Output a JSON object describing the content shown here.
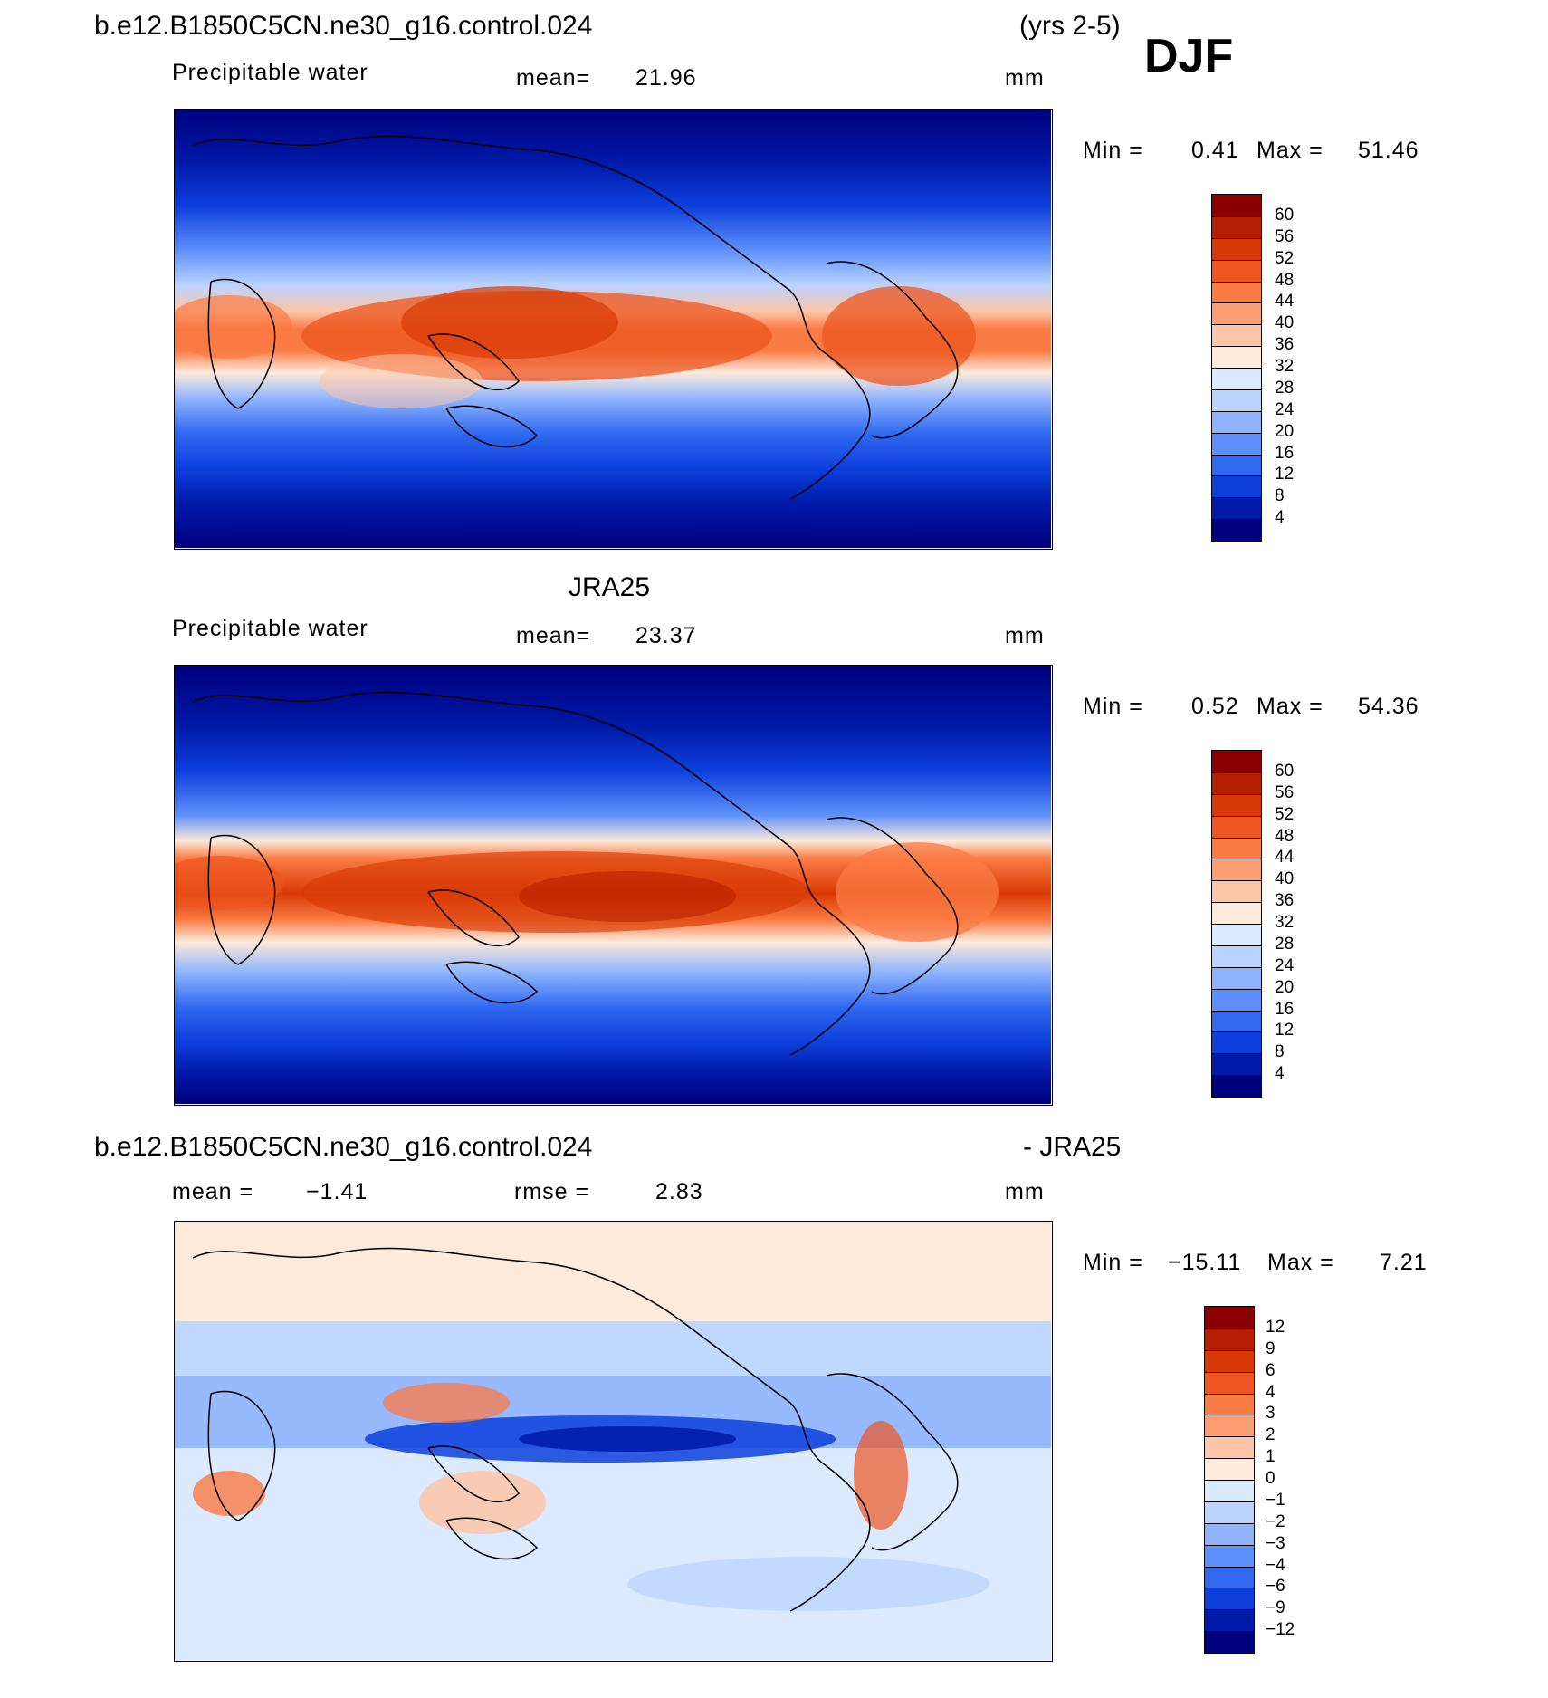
{
  "header": {
    "case_name": "b.e12.B1850C5CN.ne30_g16.control.024",
    "years": "(yrs 2-5)",
    "season": "DJF"
  },
  "panels": [
    {
      "id": "model",
      "title": "",
      "variable": "Precipitable water",
      "stat1_label": "mean=",
      "stat1_value": "21.96",
      "units": "mm",
      "min_label": "Min =",
      "min_value": "0.41",
      "max_label": "Max =",
      "max_value": "51.46"
    },
    {
      "id": "obs",
      "title": "JRA25",
      "variable": "Precipitable water",
      "stat1_label": "mean=",
      "stat1_value": "23.37",
      "units": "mm",
      "min_label": "Min =",
      "min_value": "0.52",
      "max_label": "Max =",
      "max_value": "54.36"
    },
    {
      "id": "diff",
      "title_left": "b.e12.B1850C5CN.ne30_g16.control.024",
      "title_right": "- JRA25",
      "stat1_label": "mean =",
      "stat1_value": "−1.41",
      "stat2_label": "rmse =",
      "stat2_value": "2.83",
      "units": "mm",
      "min_label": "Min =",
      "min_value": "−15.11",
      "max_label": "Max =",
      "max_value": "7.21"
    }
  ],
  "colorbars": {
    "abs": {
      "labels": [
        "60",
        "56",
        "52",
        "48",
        "44",
        "40",
        "36",
        "32",
        "28",
        "24",
        "20",
        "16",
        "12",
        "8",
        "4"
      ],
      "colors": [
        "#8a0000",
        "#b51e00",
        "#d93a05",
        "#ee5520",
        "#fb7b45",
        "#fc9e74",
        "#fdc6a8",
        "#fdeada",
        "#dbeaff",
        "#b9d3fe",
        "#8fb4fd",
        "#5e8ffb",
        "#3068f0",
        "#0d3fdc",
        "#0019a8",
        "#00007e"
      ]
    },
    "diff": {
      "labels": [
        "12",
        "9",
        "6",
        "4",
        "3",
        "2",
        "1",
        "0",
        "−1",
        "−2",
        "−3",
        "−4",
        "−6",
        "−9",
        "−12"
      ],
      "colors": [
        "#8a0000",
        "#b51e00",
        "#d93a05",
        "#ee5520",
        "#fb7b45",
        "#fc9e74",
        "#fdc6a8",
        "#fdeada",
        "#dbeaff",
        "#b9d3fe",
        "#8fb4fd",
        "#5e8ffb",
        "#3068f0",
        "#0d3fdc",
        "#0019a8",
        "#00007e"
      ]
    }
  }
}
